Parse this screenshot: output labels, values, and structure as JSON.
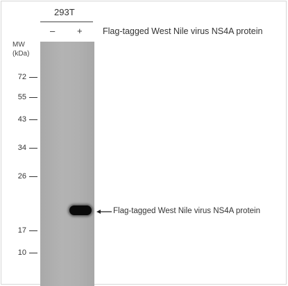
{
  "cell_line": "293T",
  "lanes": [
    "–",
    "+"
  ],
  "header_label": "Flag-tagged West Nile virus NS4A protein",
  "mw_label_line1": "MW",
  "mw_label_line2": "(kDa)",
  "markers": [
    "72",
    "55",
    "43",
    "34",
    "26",
    "17",
    "10"
  ],
  "band_label": "Flag-tagged West Nile  virus NS4A protein",
  "colors": {
    "blot": "#b0b0b0",
    "band": "#0a0a0a"
  }
}
